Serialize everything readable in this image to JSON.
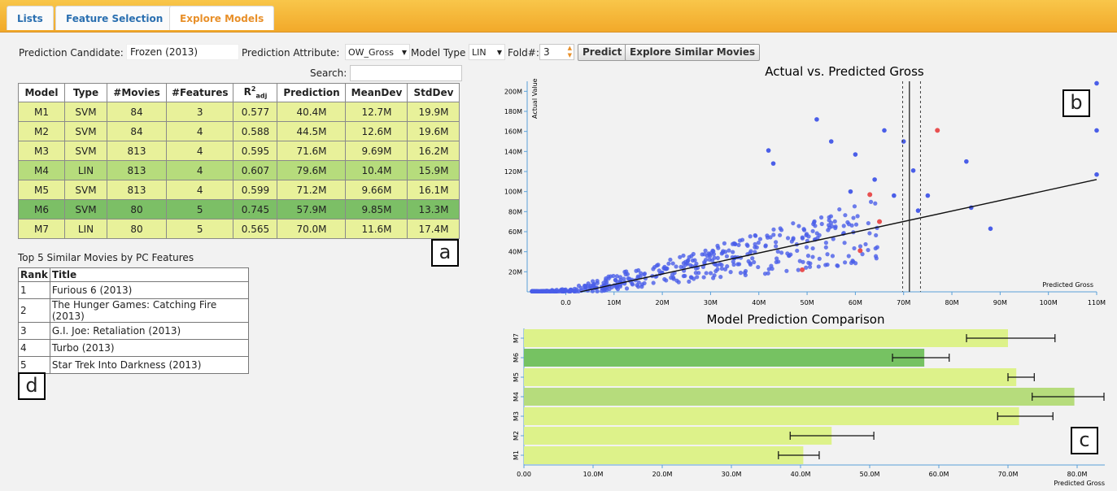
{
  "tabs": [
    "Lists",
    "Feature Selection",
    "Explore Models"
  ],
  "controls": {
    "candidate_label": "Prediction Candidate:",
    "candidate_value": "Frozen (2013)",
    "attribute_label": "Prediction Attribute:",
    "attribute_value": "OW_Gross",
    "model_type_label": "Model Type",
    "model_type_value": "LIN",
    "fold_label": "Fold#:",
    "fold_value": "3",
    "predict_label": "Predict",
    "explore_label": "Explore Similar Movies",
    "search_label": "Search:"
  },
  "model_table": {
    "headers": [
      "Model",
      "Type",
      "#Movies",
      "#Features",
      "R²adj",
      "Prediction",
      "MeanDev",
      "StdDev"
    ],
    "rows": [
      {
        "model": "M1",
        "type": "SVM",
        "movies": "84",
        "features": "3",
        "r2": "0.577",
        "prediction": "40.4M",
        "meandev": "12.7M",
        "stddev": "19.9M",
        "bg": "#e8f19a"
      },
      {
        "model": "M2",
        "type": "SVM",
        "movies": "84",
        "features": "4",
        "r2": "0.588",
        "prediction": "44.5M",
        "meandev": "12.6M",
        "stddev": "19.6M",
        "bg": "#e8f19a"
      },
      {
        "model": "M3",
        "type": "SVM",
        "movies": "813",
        "features": "4",
        "r2": "0.595",
        "prediction": "71.6M",
        "meandev": "9.69M",
        "stddev": "16.2M",
        "bg": "#e8f19a"
      },
      {
        "model": "M4",
        "type": "LIN",
        "movies": "813",
        "features": "4",
        "r2": "0.607",
        "prediction": "79.6M",
        "meandev": "10.4M",
        "stddev": "15.9M",
        "bg": "#b6dc7c"
      },
      {
        "model": "M5",
        "type": "SVM",
        "movies": "813",
        "features": "4",
        "r2": "0.599",
        "prediction": "71.2M",
        "meandev": "9.66M",
        "stddev": "16.1M",
        "bg": "#e8f19a"
      },
      {
        "model": "M6",
        "type": "SVM",
        "movies": "80",
        "features": "5",
        "r2": "0.745",
        "prediction": "57.9M",
        "meandev": "9.85M",
        "stddev": "13.3M",
        "bg": "#7cbf66"
      },
      {
        "model": "M7",
        "type": "LIN",
        "movies": "80",
        "features": "5",
        "r2": "0.565",
        "prediction": "70.0M",
        "meandev": "11.6M",
        "stddev": "17.4M",
        "bg": "#e8f19a"
      }
    ]
  },
  "similar": {
    "caption": "Top 5 Similar Movies by PC Features",
    "headers": [
      "Rank",
      "Title"
    ],
    "rows": [
      {
        "rank": "1",
        "title": "Furious 6 (2013)"
      },
      {
        "rank": "2",
        "title": "The Hunger Games: Catching Fire (2013)"
      },
      {
        "rank": "3",
        "title": "G.I. Joe: Retaliation (2013)"
      },
      {
        "rank": "4",
        "title": "Turbo (2013)"
      },
      {
        "rank": "5",
        "title": "Star Trek Into Darkness (2013)"
      }
    ]
  },
  "tags": {
    "a": "a",
    "b": "b",
    "c": "c",
    "d": "d"
  },
  "chart_data": [
    {
      "type": "scatter",
      "title": "Actual vs. Predicted Gross",
      "xlabel": "Predicted Gross",
      "ylabel": "Actual Value",
      "xlim": [
        -8,
        110
      ],
      "ylim": [
        0,
        210
      ],
      "x_ticks": [
        "0.0",
        "10M",
        "20M",
        "30M",
        "40M",
        "50M",
        "60M",
        "70M",
        "80M",
        "90M",
        "100M",
        "110M"
      ],
      "y_ticks": [
        "20M",
        "40M",
        "60M",
        "80M",
        "100M",
        "120M",
        "140M",
        "160M",
        "180M",
        "200M"
      ],
      "fit_line": {
        "x": [
          3,
          110
        ],
        "y": [
          0,
          112
        ]
      },
      "vlines": {
        "solid": 71.2,
        "dashed": [
          69.8,
          73.5
        ]
      },
      "colors": {
        "points": "#4a5ee8",
        "highlight": "#e85050"
      },
      "highlight_points": [
        [
          77,
          161
        ],
        [
          63,
          97
        ],
        [
          65,
          70
        ],
        [
          61,
          41
        ],
        [
          49,
          22
        ]
      ],
      "outlier_points": [
        [
          110,
          208
        ],
        [
          110,
          161
        ],
        [
          110,
          117
        ],
        [
          83,
          130
        ],
        [
          88,
          63
        ],
        [
          66,
          161
        ],
        [
          70,
          150
        ],
        [
          52,
          172
        ],
        [
          55,
          150
        ],
        [
          60,
          137
        ],
        [
          42,
          141
        ],
        [
          43,
          128
        ],
        [
          64,
          112
        ],
        [
          72,
          121
        ],
        [
          59,
          100
        ],
        [
          68,
          96
        ],
        [
          84,
          84
        ],
        [
          75,
          96
        ],
        [
          73,
          81
        ]
      ]
    },
    {
      "type": "bar",
      "title": "Model Prediction Comparison",
      "xlabel": "Predicted Gross",
      "xlim": [
        0,
        84
      ],
      "x_ticks": [
        "0.00",
        "10.0M",
        "20.0M",
        "30.0M",
        "40.0M",
        "50.0M",
        "60.0M",
        "70.0M",
        "80.0M"
      ],
      "categories": [
        "M7",
        "M6",
        "M5",
        "M4",
        "M3",
        "M2",
        "M1"
      ],
      "values": [
        70.0,
        57.9,
        71.2,
        79.6,
        71.6,
        44.5,
        40.4
      ],
      "error_low": [
        64.0,
        53.3,
        70.0,
        73.5,
        68.5,
        38.5,
        36.8
      ],
      "error_high": [
        76.8,
        61.5,
        73.8,
        84.5,
        76.5,
        50.6,
        42.7
      ],
      "colors": {
        "default": "#ddf28a",
        "M6": "#76c262",
        "M4": "#b6dc7c"
      }
    }
  ]
}
